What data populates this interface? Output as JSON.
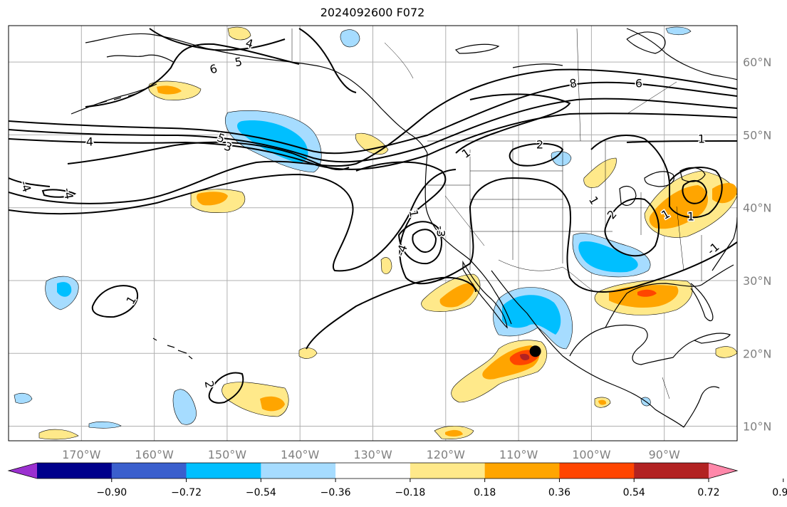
{
  "title": "2024092600 F072",
  "map": {
    "projection": "PlateCarree",
    "lon_range": [
      -180,
      -80
    ],
    "lat_range": [
      8,
      65
    ],
    "grid": true,
    "lat_labels": [
      "60°N",
      "50°N",
      "40°N",
      "30°N",
      "20°N",
      "10°N"
    ],
    "lon_labels": [
      "170°W",
      "160°W",
      "150°W",
      "140°W",
      "130°W",
      "120°W",
      "110°W",
      "100°W",
      "90°W"
    ],
    "contour_color": "#000000",
    "contour_labels": [
      "4",
      "6",
      "5",
      "4",
      "5",
      "3",
      "-4",
      "-4",
      "8",
      "6",
      "1",
      "2",
      "1",
      "2",
      "1",
      "1",
      "-3",
      "-4",
      "2",
      "1",
      "1",
      "1",
      "-1"
    ],
    "marker": {
      "description": "black dot",
      "lon": -107.7,
      "lat": 20.3
    }
  },
  "colorbar": {
    "orientation": "horizontal",
    "extend": "both",
    "colors": [
      "#9b30d0",
      "#00008b",
      "#3a5fcd",
      "#00bfff",
      "#a6dcff",
      "#ffffff",
      "#ffe98a",
      "#ffa500",
      "#ff4500",
      "#b22222",
      "#ff88aa"
    ],
    "tick_labels": [
      "−0.90",
      "−0.72",
      "−0.54",
      "−0.36",
      "−0.18",
      "0.18",
      "0.36",
      "0.54",
      "0.72",
      "0.90"
    ]
  }
}
